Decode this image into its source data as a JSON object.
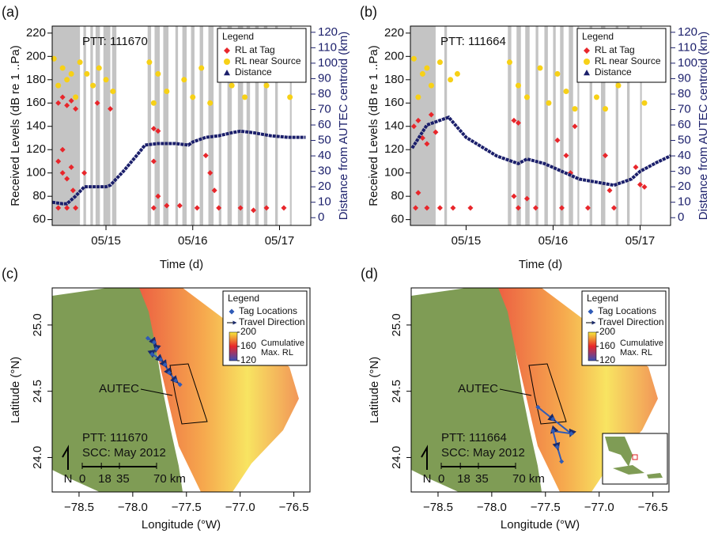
{
  "chart_data": [
    {
      "type": "timeseries",
      "label": "(a)",
      "annotation": "PTT: 111670",
      "xlabel": "Time (d)",
      "ylabel": "Received Levels (dB re 1 ..Pa)",
      "y2label": "Distance from AUTEC centroid (km)",
      "legend_title": "Legend",
      "legend": "top-right",
      "xlim": [
        14.38,
        17.36
      ],
      "xticks": [
        {
          "value": 15,
          "label": "05/15"
        },
        {
          "value": 16,
          "label": "05/16"
        },
        {
          "value": 17,
          "label": "05/17"
        }
      ],
      "ylim": [
        55,
        226
      ],
      "yticks": [
        60,
        80,
        100,
        120,
        140,
        160,
        180,
        200,
        220
      ],
      "y2lim": [
        -5,
        124
      ],
      "y2ticks": [
        0,
        10,
        20,
        30,
        40,
        50,
        60,
        70,
        80,
        90,
        100,
        110,
        120
      ],
      "shading_color": "#c4c4c4",
      "shading": [
        [
          14.38,
          14.7
        ],
        [
          14.74,
          14.77
        ],
        [
          14.82,
          14.85
        ],
        [
          14.88,
          14.93
        ],
        [
          14.97,
          15.05
        ],
        [
          15.07,
          15.12
        ],
        [
          15.48,
          15.52
        ],
        [
          15.56,
          15.62
        ],
        [
          15.66,
          15.72
        ],
        [
          15.8,
          15.83
        ],
        [
          15.88,
          15.93
        ],
        [
          15.98,
          16.02
        ],
        [
          16.08,
          16.12
        ],
        [
          16.18,
          16.24
        ],
        [
          16.3,
          16.33
        ],
        [
          16.4,
          16.45
        ],
        [
          16.52,
          16.58
        ],
        [
          16.62,
          16.66
        ],
        [
          16.72,
          16.76
        ],
        [
          16.82,
          16.86
        ],
        [
          16.95,
          16.98
        ],
        [
          17.12,
          17.14
        ]
      ],
      "series": [
        {
          "name": "RL near Source",
          "color": "#f7d117",
          "marker": "circle",
          "x": [
            14.4,
            14.5,
            14.6,
            14.45,
            14.55,
            14.65,
            14.7,
            14.78,
            14.85,
            14.92,
            15.0,
            15.08,
            15.5,
            15.6,
            15.7,
            15.55,
            15.9,
            16.0,
            16.1,
            16.2,
            16.35,
            16.45,
            16.55,
            16.6,
            16.75,
            16.85,
            16.95,
            17.12
          ],
          "values": [
            198,
            190,
            185,
            175,
            180,
            165,
            195,
            185,
            175,
            190,
            180,
            170,
            195,
            185,
            170,
            160,
            180,
            165,
            190,
            160,
            180,
            175,
            195,
            165,
            185,
            175,
            200,
            165
          ]
        },
        {
          "name": "RL at Tag",
          "color": "#e8262b",
          "marker": "diamond",
          "x": [
            14.45,
            14.5,
            14.55,
            14.6,
            14.65,
            14.45,
            14.5,
            14.55,
            14.6,
            14.62,
            14.5,
            14.45,
            14.55,
            14.65,
            14.75,
            14.9,
            15.05,
            15.55,
            15.6,
            15.55,
            15.6,
            15.55,
            15.7,
            15.85,
            16.05,
            16.15,
            16.2,
            16.25,
            16.3,
            16.55,
            16.7,
            16.85,
            17.05
          ],
          "values": [
            160,
            165,
            158,
            162,
            155,
            110,
            100,
            95,
            105,
            85,
            120,
            70,
            70,
            70,
            100,
            160,
            155,
            138,
            136,
            110,
            80,
            70,
            72,
            72,
            70,
            115,
            100,
            85,
            70,
            70,
            68,
            70,
            70
          ]
        },
        {
          "name": "Distance",
          "color": "#1b1f6b",
          "marker": "triangle",
          "axis": "y2",
          "x": [
            14.38,
            14.5,
            14.55,
            14.65,
            14.75,
            14.85,
            15.0,
            15.05,
            15.2,
            15.35,
            15.45,
            15.6,
            15.8,
            15.95,
            16.0,
            16.15,
            16.3,
            16.45,
            16.55,
            16.7,
            16.9,
            17.1,
            17.3
          ],
          "values": [
            10,
            9,
            9,
            14,
            20,
            20,
            20,
            21,
            30,
            40,
            47,
            48,
            48,
            47,
            49,
            52,
            53,
            55,
            56,
            55,
            53,
            52,
            52
          ]
        }
      ]
    },
    {
      "type": "timeseries",
      "label": "(b)",
      "annotation": "PTT: 111664",
      "xlabel": "Time (d)",
      "ylabel": "Received Levels (dB re 1 ..Pa)",
      "y2label": "Distance from AUTEC centroid (km)",
      "legend_title": "Legend",
      "legend": "top-right",
      "xlim": [
        14.36,
        17.35
      ],
      "xticks": [
        {
          "value": 15,
          "label": "05/15"
        },
        {
          "value": 16,
          "label": "05/16"
        },
        {
          "value": 17,
          "label": "05/17"
        }
      ],
      "ylim": [
        55,
        226
      ],
      "yticks": [
        60,
        80,
        100,
        120,
        140,
        160,
        180,
        200,
        220
      ],
      "y2lim": [
        -5,
        124
      ],
      "y2ticks": [
        0,
        10,
        20,
        30,
        40,
        50,
        60,
        70,
        80,
        90,
        100,
        110,
        120
      ],
      "shading_color": "#c4c4c4",
      "shading": [
        [
          14.36,
          14.65
        ],
        [
          14.75,
          14.78
        ],
        [
          15.48,
          15.52
        ],
        [
          15.58,
          15.63
        ],
        [
          15.68,
          15.73
        ],
        [
          15.8,
          15.83
        ],
        [
          15.9,
          15.94
        ],
        [
          16.0,
          16.03
        ],
        [
          16.08,
          16.12
        ],
        [
          16.18,
          16.23
        ],
        [
          16.28,
          16.3
        ],
        [
          16.42,
          16.45
        ],
        [
          16.55,
          16.6
        ],
        [
          16.72,
          16.75
        ],
        [
          16.85,
          16.88
        ],
        [
          17.0,
          17.02
        ]
      ],
      "series": [
        {
          "name": "RL near Source",
          "color": "#f7d117",
          "marker": "circle",
          "x": [
            14.4,
            14.5,
            14.6,
            14.45,
            14.55,
            14.7,
            14.82,
            14.9,
            15.5,
            15.6,
            15.7,
            15.85,
            15.95,
            16.05,
            16.15,
            16.25,
            16.35,
            16.5,
            16.6,
            16.75,
            16.9,
            17.05
          ],
          "values": [
            198,
            185,
            175,
            165,
            190,
            195,
            180,
            185,
            195,
            175,
            165,
            190,
            160,
            185,
            170,
            155,
            180,
            165,
            155,
            175,
            190,
            160
          ]
        },
        {
          "name": "RL at Tag",
          "color": "#e8262b",
          "marker": "diamond",
          "x": [
            14.4,
            14.45,
            14.5,
            14.55,
            14.6,
            14.65,
            14.45,
            14.42,
            14.55,
            14.7,
            14.85,
            15.05,
            15.55,
            15.6,
            15.55,
            15.6,
            15.7,
            15.8,
            16.05,
            16.15,
            16.25,
            16.2,
            16.1,
            16.4,
            16.6,
            16.65,
            16.7,
            16.95,
            17.0,
            17.05
          ],
          "values": [
            140,
            145,
            130,
            125,
            150,
            135,
            83,
            70,
            70,
            70,
            70,
            70,
            145,
            143,
            80,
            70,
            78,
            70,
            128,
            115,
            140,
            100,
            70,
            70,
            115,
            85,
            70,
            105,
            90,
            88
          ]
        },
        {
          "name": "Distance",
          "color": "#1b1f6b",
          "marker": "triangle",
          "axis": "y2",
          "x": [
            14.38,
            14.55,
            14.8,
            15.0,
            15.35,
            15.6,
            15.7,
            15.9,
            16.1,
            16.3,
            16.5,
            16.7,
            16.9,
            17.0,
            17.2,
            17.35
          ],
          "values": [
            45,
            60,
            65,
            52,
            40,
            35,
            38,
            35,
            30,
            25,
            23,
            21,
            25,
            30,
            36,
            40
          ]
        }
      ]
    },
    {
      "type": "map",
      "label": "(c)",
      "xlabel": "Longitude (°W)",
      "ylabel": "Latitude (°N)",
      "xlim": [
        -78.75,
        -76.35
      ],
      "xticks": [
        {
          "value": -78.5,
          "label": "−78.5"
        },
        {
          "value": -78.0,
          "label": "−78.0"
        },
        {
          "value": -77.5,
          "label": "−77.5"
        },
        {
          "value": -77.0,
          "label": "−77.0"
        },
        {
          "value": -76.5,
          "label": "−76.5"
        }
      ],
      "ylim": [
        23.74,
        25.28
      ],
      "yticks": [
        {
          "value": 24.0,
          "label": "24.0"
        },
        {
          "value": 24.5,
          "label": "24.5"
        },
        {
          "value": 25.0,
          "label": "25.0"
        }
      ],
      "legend_title": "Legend",
      "direction_label": "Travel Direction",
      "series": [
        {
          "name": "Tag Locations",
          "color": "#2f5bb7",
          "x": [
            -77.86,
            -77.8,
            -77.78,
            -77.82,
            -77.74,
            -77.7,
            -77.66,
            -77.6,
            -77.56
          ],
          "values": [
            24.9,
            24.87,
            24.82,
            24.78,
            24.74,
            24.7,
            24.64,
            24.58,
            24.55
          ]
        }
      ],
      "colorbar": {
        "title": [
          "Cumulative",
          "Max. RL"
        ],
        "lim": [
          120,
          200
        ],
        "ticks": [
          120,
          160,
          200
        ],
        "colors": [
          "#3b4fb8",
          "#e8262b",
          "#f7e93c"
        ]
      },
      "area_label": "AUTEC",
      "annotations": [
        "PTT: 111670",
        "SCC: May 2012"
      ],
      "north": "N",
      "scale_bar": [
        0,
        18,
        35,
        {
          "value": 70,
          "label": "70 km"
        }
      ]
    },
    {
      "type": "map",
      "label": "(d)",
      "xlabel": "Longitude (°W)",
      "ylabel": "Latitude (°N)",
      "xlim": [
        -78.75,
        -76.35
      ],
      "xticks": [
        {
          "value": -78.5,
          "label": "−78.5"
        },
        {
          "value": -78.0,
          "label": "−78.0"
        },
        {
          "value": -77.5,
          "label": "−77.5"
        },
        {
          "value": -77.0,
          "label": "−77.0"
        },
        {
          "value": -76.5,
          "label": "−76.5"
        }
      ],
      "ylim": [
        23.74,
        25.28
      ],
      "yticks": [
        {
          "value": 24.0,
          "label": "24.0"
        },
        {
          "value": 24.5,
          "label": "24.5"
        },
        {
          "value": 25.0,
          "label": "25.0"
        }
      ],
      "legend_title": "Legend",
      "direction_label": "Travel Direction",
      "series": [
        {
          "name": "Tag Locations",
          "color": "#2f5bb7",
          "x": [
            -77.57,
            -77.43,
            -77.26,
            -77.43,
            -77.39,
            -77.35
          ],
          "values": [
            24.38,
            24.29,
            24.18,
            24.2,
            24.08,
            23.97
          ]
        }
      ],
      "colorbar": {
        "title": [
          "Cumulative",
          "Max. RL"
        ],
        "lim": [
          120,
          200
        ],
        "ticks": [
          120,
          160,
          200
        ],
        "colors": [
          "#3b4fb8",
          "#e8262b",
          "#f7e93c"
        ]
      },
      "area_label": "AUTEC",
      "annotations": [
        "PTT: 111664",
        "SCC: May 2012"
      ],
      "north": "N",
      "scale_bar": [
        0,
        18,
        35,
        {
          "value": 70,
          "label": "70 km"
        }
      ]
    }
  ]
}
